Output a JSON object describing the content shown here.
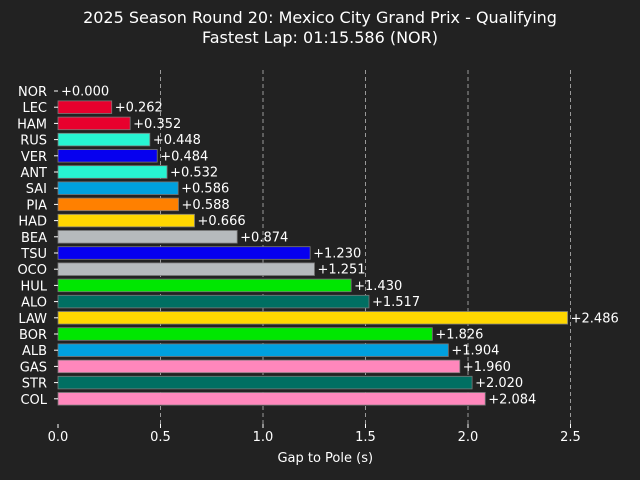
{
  "chart_data": {
    "type": "bar",
    "orientation": "horizontal",
    "title": "2025 Season Round 20: Mexico City Grand Prix - Qualifying",
    "subtitle": "Fastest Lap: 01:15.586 (NOR)",
    "xlabel": "Gap to Pole (s)",
    "ylabel": "",
    "xlim": [
      0,
      2.5
    ],
    "xticks": [
      0.0,
      0.5,
      1.0,
      1.5,
      2.0,
      2.5
    ],
    "xtick_labels": [
      "0.0",
      "0.5",
      "1.0",
      "1.5",
      "2.0",
      "2.5"
    ],
    "grid": "x-axis dashed",
    "categories": [
      "NOR",
      "LEC",
      "HAM",
      "RUS",
      "VER",
      "ANT",
      "SAI",
      "PIA",
      "HAD",
      "BEA",
      "TSU",
      "OCO",
      "HUL",
      "ALO",
      "LAW",
      "BOR",
      "ALB",
      "GAS",
      "STR",
      "COL"
    ],
    "values": [
      0.0,
      0.262,
      0.352,
      0.448,
      0.484,
      0.532,
      0.586,
      0.588,
      0.666,
      0.874,
      1.23,
      1.251,
      1.43,
      1.517,
      2.486,
      1.826,
      1.904,
      1.96,
      2.02,
      2.084
    ],
    "data_labels": [
      "+0.000",
      "+0.262",
      "+0.352",
      "+0.448",
      "+0.484",
      "+0.532",
      "+0.586",
      "+0.588",
      "+0.666",
      "+0.874",
      "+1.230",
      "+1.251",
      "+1.430",
      "+1.517",
      "+2.486",
      "+1.826",
      "+1.904",
      "+1.960",
      "+2.020",
      "+2.084"
    ],
    "colors": [
      "#FF8000",
      "#E8002D",
      "#E8002D",
      "#27F4D2",
      "#0600EF",
      "#27F4D2",
      "#00A0DE",
      "#FF8000",
      "#FFD700",
      "#B6BABD",
      "#0600EF",
      "#B6BABD",
      "#00E701",
      "#006F62",
      "#FFD700",
      "#00E701",
      "#00A0DE",
      "#FF87BC",
      "#006F62",
      "#FF87BC"
    ]
  }
}
